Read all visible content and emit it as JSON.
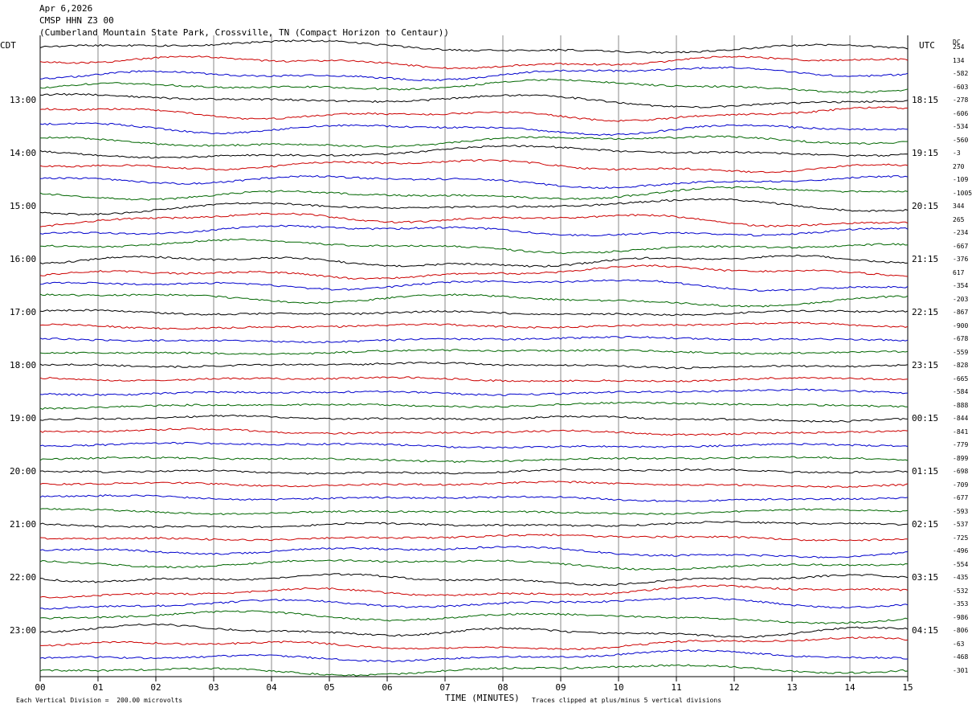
{
  "header": {
    "date": "Apr 6,2026",
    "station": "CMSP HHN Z3 00",
    "location": "(Cumberland Mountain State Park, Crossville, TN (Compact Horizon to Centaur))"
  },
  "left_tz": "CDT",
  "right_tz": "UTC",
  "dc_label": "DC",
  "footer": {
    "scale_note": "Each Vertical Division =  200.00 microvolts",
    "xlabel": "TIME (MINUTES)",
    "clip_note": "Traces clipped at plus/minus 5 vertical divisions"
  },
  "chart_data": {
    "type": "line",
    "title": "",
    "xlabel": "TIME (MINUTES)",
    "xlim": [
      0,
      15
    ],
    "x_ticks": [
      "00",
      "01",
      "02",
      "03",
      "04",
      "05",
      "06",
      "07",
      "08",
      "09",
      "10",
      "11",
      "12",
      "13",
      "14",
      "15"
    ],
    "trace_count": 48,
    "trace_colors": [
      "#000000",
      "#cc0000",
      "#0000cc",
      "#006600"
    ],
    "left_hour_labels": [
      "13:00",
      "14:00",
      "15:00",
      "16:00",
      "17:00",
      "18:00",
      "19:00",
      "20:00",
      "21:00",
      "22:00",
      "23:00"
    ],
    "right_hour_labels": [
      "18:15",
      "19:15",
      "20:15",
      "21:15",
      "22:15",
      "23:15",
      "00:15",
      "01:15",
      "02:15",
      "03:15",
      "04:15"
    ],
    "dc_offsets": [
      "254",
      "134",
      "-582",
      "-603",
      "-278",
      "-606",
      "-534",
      "-560",
      "-3",
      "270",
      "-109",
      "-1005",
      "344",
      "265",
      "-234",
      "-667",
      "-376",
      "617",
      "-354",
      "-203",
      "-867",
      "-900",
      "-678",
      "-559",
      "-828",
      "-665",
      "-584",
      "-888",
      "-844",
      "-841",
      "-779",
      "-899",
      "-698",
      "-709",
      "-677",
      "-593",
      "-537",
      "-725",
      "-496",
      "-554",
      "-435",
      "-532",
      "-353",
      "-986",
      "-806",
      "-63",
      "-468",
      "-301"
    ],
    "grid": true
  }
}
